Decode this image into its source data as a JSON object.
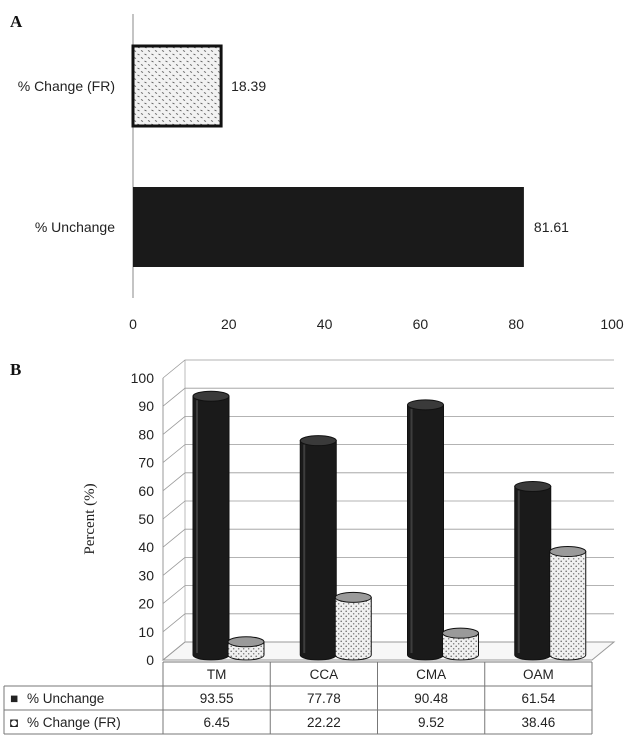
{
  "panel_a": {
    "letter": "A",
    "chart_data": {
      "type": "bar",
      "orientation": "horizontal",
      "categories": [
        "% Change (FR)",
        "% Unchange"
      ],
      "values": [
        18.39,
        81.61
      ],
      "data_labels": [
        "18.39",
        "81.61"
      ],
      "fills": [
        "pattern-dotted",
        "#1a1a1a"
      ],
      "xlim": [
        0,
        100
      ],
      "xticks": [
        "0",
        "20",
        "40",
        "60",
        "80",
        "100"
      ],
      "grid": false,
      "xlabel": "",
      "ylabel": "",
      "title": ""
    }
  },
  "panel_b": {
    "letter": "B",
    "chart_data": {
      "type": "bar",
      "style": "3d-cylinder",
      "categories": [
        "TM",
        "CCA",
        "CMA",
        "OAM"
      ],
      "series": [
        {
          "name": "% Unchange",
          "values": [
            93.55,
            77.78,
            90.48,
            61.54
          ],
          "display": [
            "93.55",
            "77.78",
            "90.48",
            "61.54"
          ],
          "color": "#1a1a1a",
          "legend_marker": "■"
        },
        {
          "name": "% Change (FR)",
          "values": [
            6.45,
            22.22,
            9.52,
            38.46
          ],
          "display": [
            "6.45",
            "22.22",
            "9.52",
            "38.46"
          ],
          "color": "pattern-dotted",
          "legend_marker": "◘"
        }
      ],
      "ylabel": "Percent (%)",
      "xlabel": "",
      "title": "",
      "ylim": [
        0,
        100
      ],
      "yticks": [
        "0",
        "10",
        "20",
        "30",
        "40",
        "50",
        "60",
        "70",
        "80",
        "90",
        "100"
      ],
      "grid": true,
      "legend": "data-table"
    }
  }
}
